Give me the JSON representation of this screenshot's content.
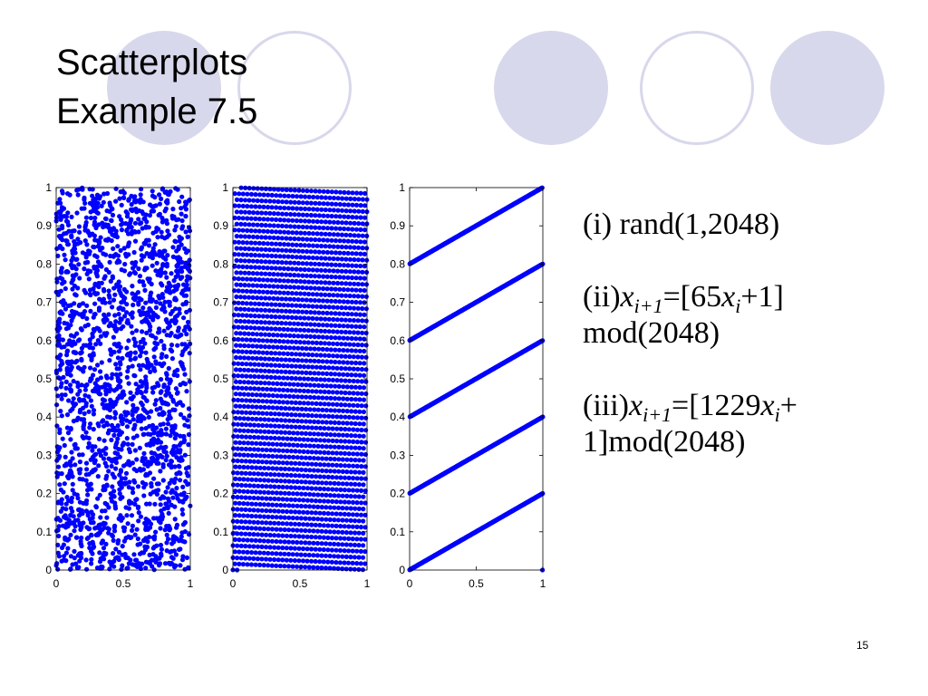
{
  "title": {
    "line1": "Scatterplots",
    "line2": "Example 7.5"
  },
  "colors": {
    "point": "#0000ff",
    "decoration": "#d8d8ec"
  },
  "decorations": [
    "filled-circle",
    "ring-circle",
    "filled-circle",
    "ring-circle",
    "filled-circle"
  ],
  "descriptions": [
    {
      "label": "(i) rand(1,2048)"
    },
    {
      "label": "(ii)",
      "var": "x",
      "sub1": "i+1",
      "mid": "=[65",
      "var2": "x",
      "sub2": "i",
      "tail": "+1] mod(2048)"
    },
    {
      "label": "(iii)",
      "var": "x",
      "sub1": "i+1",
      "mid": "=[1229",
      "var2": "x",
      "sub2": "i",
      "tail": "+ 1]mod(2048)"
    }
  ],
  "page_number": "15",
  "chart_data": [
    {
      "type": "scatter",
      "generator": "rand(1,2048)",
      "n_points": 2048,
      "xlim": [
        0,
        1
      ],
      "ylim": [
        0,
        1
      ],
      "xticks": [
        "0",
        "0.5",
        "1"
      ],
      "yticks": [
        "0",
        "0.1",
        "0.2",
        "0.3",
        "0.4",
        "0.5",
        "0.6",
        "0.7",
        "0.8",
        "0.9",
        "1"
      ],
      "grid": false
    },
    {
      "type": "scatter",
      "generator": "x(i+1) = [65 x(i) + 1] mod 2048",
      "multiplier": 65,
      "increment": 1,
      "modulus": 2048,
      "n_points": 2048,
      "xlim": [
        0,
        1
      ],
      "ylim": [
        0,
        1
      ],
      "xticks": [
        "0",
        "0.5",
        "1"
      ],
      "yticks": [
        "0",
        "0.1",
        "0.2",
        "0.3",
        "0.4",
        "0.5",
        "0.6",
        "0.7",
        "0.8",
        "0.9",
        "1"
      ],
      "grid": false
    },
    {
      "type": "scatter",
      "generator": "x(i+1) = [1229 x(i) + 1] mod 2048",
      "multiplier": 1229,
      "increment": 1,
      "modulus": 2048,
      "n_points": 2048,
      "xlim": [
        0,
        1
      ],
      "ylim": [
        0,
        1
      ],
      "xticks": [
        "0",
        "0.5",
        "1"
      ],
      "yticks": [
        "0",
        "0.1",
        "0.2",
        "0.3",
        "0.4",
        "0.5",
        "0.6",
        "0.7",
        "0.8",
        "0.9",
        "1"
      ],
      "grid": false
    }
  ]
}
